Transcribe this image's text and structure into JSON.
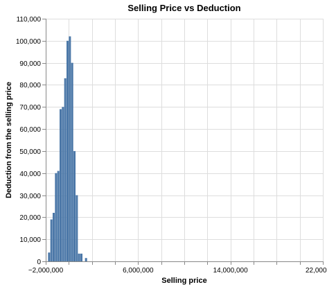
{
  "chart_data": {
    "type": "bar",
    "title": "Selling Price vs Deduction",
    "xlabel": "Selling price",
    "ylabel": "Deduction from the selling price",
    "xlim": [
      -2000000,
      22000000
    ],
    "ylim": [
      0,
      110000
    ],
    "x_ticks": [
      -2000000,
      6000000,
      14000000,
      22000000
    ],
    "x_tick_labels": [
      "−2,000,000",
      "6,000,000",
      "14,000,000",
      "22,000,000"
    ],
    "y_ticks": [
      0,
      10000,
      20000,
      30000,
      40000,
      50000,
      60000,
      70000,
      80000,
      90000,
      100000,
      110000
    ],
    "y_tick_labels": [
      "0",
      "10,000",
      "20,000",
      "30,000",
      "40,000",
      "50,000",
      "60,000",
      "70,000",
      "80,000",
      "90,000",
      "100,000",
      "110,000"
    ],
    "grid": true,
    "legend": "none",
    "color": "#4c78a8",
    "bar_width": 200000,
    "x": [
      -1700000,
      -1500000,
      -1300000,
      -1100000,
      -900000,
      -700000,
      -500000,
      -300000,
      -100000,
      100000,
      300000,
      500000,
      700000,
      900000,
      1100000,
      1500000
    ],
    "values": [
      4000,
      19000,
      22000,
      40000,
      41000,
      69000,
      70000,
      83000,
      100000,
      102000,
      90000,
      50000,
      30000,
      3500,
      3500,
      1500
    ]
  }
}
